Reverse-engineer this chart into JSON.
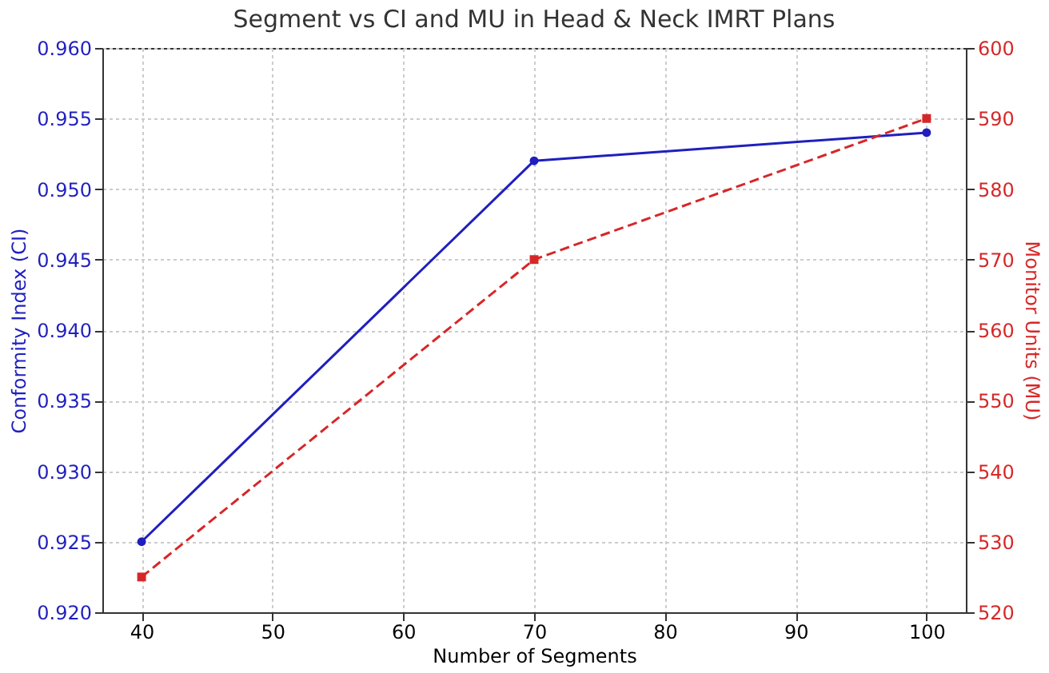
{
  "chart_data": {
    "type": "line",
    "title": "Segment vs CI and MU in Head & Neck IMRT Plans",
    "xlabel": "Number of Segments",
    "ylabel": "Conformity Index (CI)",
    "y2label": "Monitor Units (MU)",
    "x": [
      40,
      70,
      100
    ],
    "series": [
      {
        "color": "#1f1fbf",
        "values": [
          0.925,
          0.952,
          0.954
        ],
        "marker": "circle",
        "line_style": "solid"
      },
      {
        "color": "#d62728",
        "values": [
          525,
          570,
          590
        ],
        "marker": "square",
        "line_style": "dashed",
        "axis": "y2"
      }
    ],
    "xlim": [
      37,
      103
    ],
    "xticks": [
      40,
      50,
      60,
      70,
      80,
      90,
      100
    ],
    "ylim": [
      0.92,
      0.96
    ],
    "yticks": [
      {
        "value": 0.92,
        "label": "0.920"
      },
      {
        "value": 0.925,
        "label": "0.925"
      },
      {
        "value": 0.93,
        "label": "0.930"
      },
      {
        "value": 0.935,
        "label": "0.935"
      },
      {
        "value": 0.94,
        "label": "0.940"
      },
      {
        "value": 0.945,
        "label": "0.945"
      },
      {
        "value": 0.95,
        "label": "0.950"
      },
      {
        "value": 0.955,
        "label": "0.955"
      },
      {
        "value": 0.96,
        "label": "0.960"
      }
    ],
    "y2lim": [
      520,
      600
    ],
    "y2ticks": [
      520,
      530,
      540,
      550,
      560,
      570,
      580,
      590,
      600
    ],
    "grid": true
  }
}
